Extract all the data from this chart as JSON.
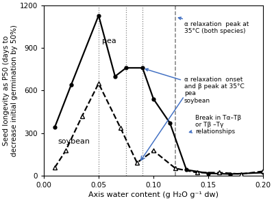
{
  "pea_x": [
    0.01,
    0.025,
    0.05,
    0.065,
    0.075,
    0.09,
    0.1,
    0.115,
    0.13,
    0.15,
    0.17,
    0.2
  ],
  "pea_y": [
    340,
    640,
    1130,
    700,
    760,
    760,
    540,
    370,
    40,
    15,
    10,
    20
  ],
  "soybean_x": [
    0.01,
    0.02,
    0.035,
    0.05,
    0.07,
    0.085,
    0.1,
    0.12,
    0.14,
    0.16,
    0.18,
    0.2
  ],
  "soybean_y": [
    55,
    175,
    420,
    650,
    335,
    90,
    175,
    50,
    20,
    20,
    10,
    30
  ],
  "vlines_dotted": [
    0.05,
    0.075,
    0.09
  ],
  "vline_dashed": 0.12,
  "xlim": [
    0,
    0.2
  ],
  "ylim": [
    0,
    1200
  ],
  "xlabel": "Axis water content (g H₂O g⁻¹ dw)",
  "ylabel": "Seed longevity as P50 (days to\ndecrease initial germination by 50%)",
  "yticks": [
    0,
    300,
    600,
    900,
    1200
  ],
  "xticks": [
    0,
    0.05,
    0.1,
    0.15,
    0.2
  ],
  "label_pea": "pea",
  "label_soybean": "soybean",
  "arrow_color": "#4472C4",
  "line_color": "black",
  "bg_color": "white",
  "ann1_text": "α relaxation  peak at\n35°C (both species)",
  "ann2_text": "α relaxation  onset\nand β peak at 35°C\npea\nsoybean",
  "ann3_text": "Break in Tα–Tβ\nor Tβ –Tγ\nrelationships"
}
